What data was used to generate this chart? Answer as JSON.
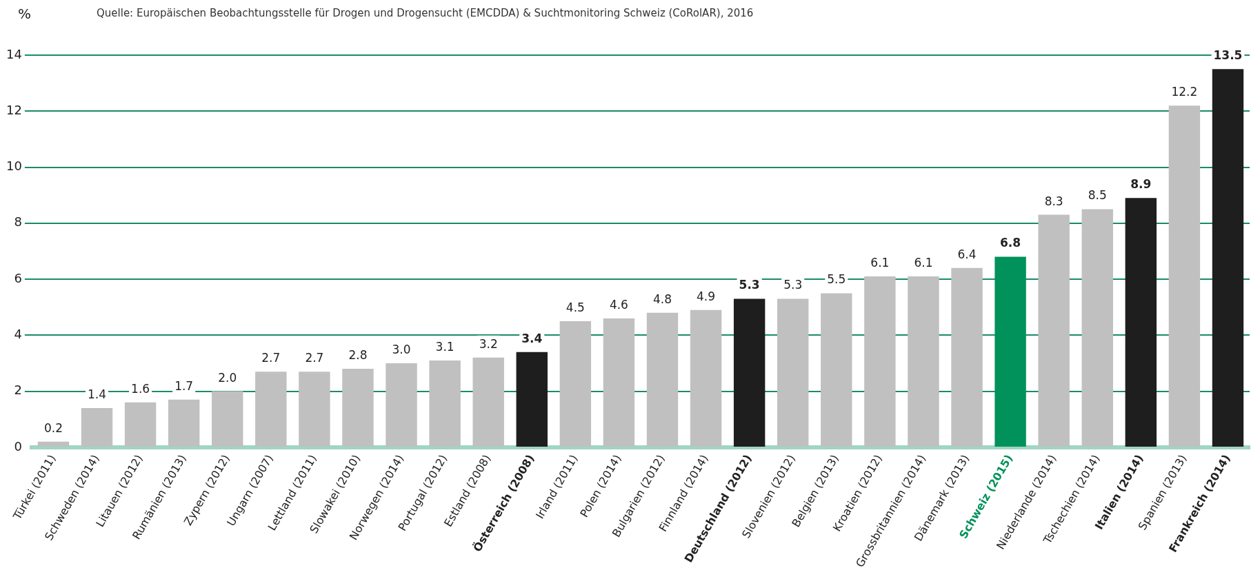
{
  "chart_data": {
    "type": "bar",
    "ylabel": "%",
    "annotations": [
      "Quelle:  Europäischen Beobachtungsstelle für Drogen und Drogensucht (EMCDDA) & Suchtmonitoring Schweiz (CoRolAR), 2016"
    ],
    "categories": [
      "Türkei (2011)",
      "Schweden (2014)",
      "Litauen (2012)",
      "Rumänien (2013)",
      "Zypern (2012)",
      "Ungarn (2007)",
      "Lettland (2011)",
      "Slowakei (2010)",
      "Norwegen (2014)",
      "Portugal (2012)",
      "Estland (2008)",
      "Österreich (2008)",
      "Irland (2011)",
      "Polen (2014)",
      "Bulgarien (2012)",
      "Finnland (2014)",
      "Deutschland (2012)",
      "Slovenien (2012)",
      "Belgien (2013)",
      "Kroatien (2012)",
      "Grossbritannien (2014)",
      "Dänemark (2013)",
      "Schweiz (2015)",
      "Niederlande (2014)",
      "Tschechien (2014)",
      "Italien (2014)",
      "Spanien (2013)",
      "Frankreich (2014)"
    ],
    "values": [
      0.2,
      1.4,
      1.6,
      1.7,
      2.0,
      2.7,
      2.7,
      2.8,
      3.0,
      3.1,
      3.2,
      3.4,
      4.5,
      4.6,
      4.8,
      4.9,
      5.3,
      5.3,
      5.5,
      6.1,
      6.1,
      6.4,
      6.8,
      8.3,
      8.5,
      8.9,
      12.2,
      13.5
    ],
    "colors": [
      "#c0c0c0",
      "#c0c0c0",
      "#c0c0c0",
      "#c0c0c0",
      "#c0c0c0",
      "#c0c0c0",
      "#c0c0c0",
      "#c0c0c0",
      "#c0c0c0",
      "#c0c0c0",
      "#c0c0c0",
      "#1e1e1e",
      "#c0c0c0",
      "#c0c0c0",
      "#c0c0c0",
      "#c0c0c0",
      "#1e1e1e",
      "#c0c0c0",
      "#c0c0c0",
      "#c0c0c0",
      "#c0c0c0",
      "#c0c0c0",
      "#00925a",
      "#c0c0c0",
      "#c0c0c0",
      "#1e1e1e",
      "#c0c0c0",
      "#1e1e1e"
    ],
    "value_labels": [
      "0.2",
      "1.4",
      "1.6",
      "1.7",
      "2.0",
      "2.7",
      "2.7",
      "2.8",
      "3.0",
      "3.1",
      "3.2",
      "3.4",
      "4.5",
      "4.6",
      "4.8",
      "4.9",
      "5.3",
      "5.3",
      "5.5",
      "6.1",
      "6.1",
      "6.4",
      "6.8",
      "8.3",
      "8.5",
      "8.9",
      "12.2",
      "13.5"
    ],
    "ylim": [
      0,
      14
    ],
    "yticks": [
      0,
      2,
      4,
      6,
      8,
      10,
      12,
      14
    ],
    "grid": "y"
  }
}
